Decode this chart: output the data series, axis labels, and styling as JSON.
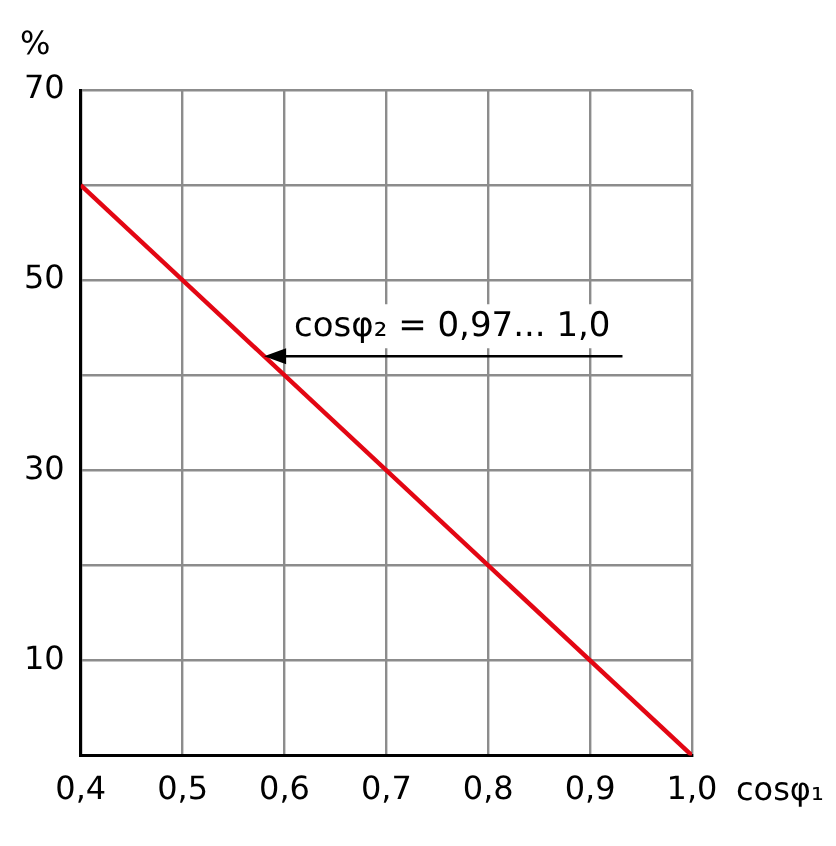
{
  "chart_data": {
    "type": "line",
    "xlabel": "cosφ₁",
    "ylabel": "%",
    "x": [
      0.4,
      1.0
    ],
    "series": [
      {
        "color": "#e30613",
        "values": [
          60,
          0
        ]
      }
    ],
    "xlim": [
      0.4,
      1.0
    ],
    "ylim": [
      0,
      70
    ],
    "xticks": [
      {
        "value": 0.4,
        "label": "0,4"
      },
      {
        "value": 0.5,
        "label": "0,5"
      },
      {
        "value": 0.6,
        "label": "0,6"
      },
      {
        "value": 0.7,
        "label": "0,7"
      },
      {
        "value": 0.8,
        "label": "0,8"
      },
      {
        "value": 0.9,
        "label": "0,9"
      },
      {
        "value": 1.0,
        "label": "1,0"
      }
    ],
    "yticks": [
      {
        "value": 0,
        "label": null
      },
      10,
      {
        "value": 20,
        "label": null
      },
      30,
      {
        "value": 40,
        "label": null
      },
      50,
      {
        "value": 60,
        "label": null
      },
      70
    ],
    "annotations": [
      {
        "text": "cosφ₂ = 0,97... 1,0",
        "x": 0.58,
        "y": 42
      }
    ],
    "grid": true,
    "legend": false,
    "marker": "none",
    "line_style": "solid"
  }
}
